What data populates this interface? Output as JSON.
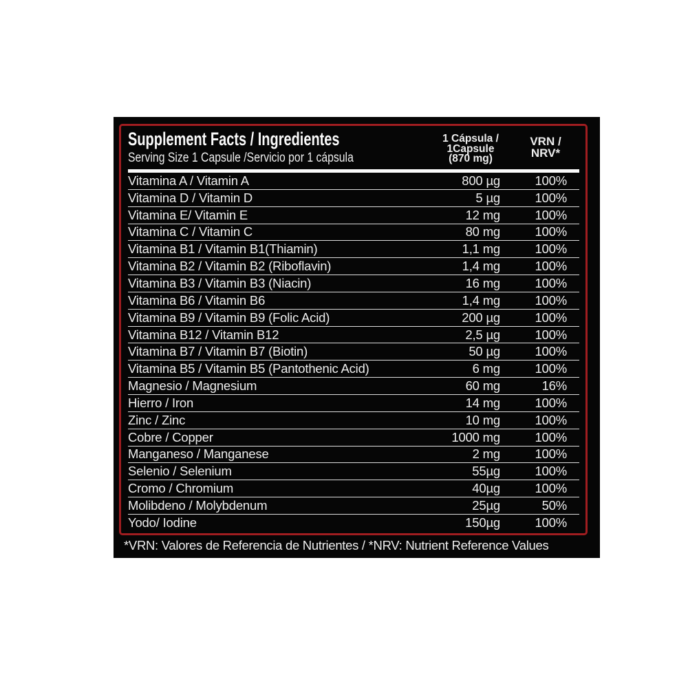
{
  "label": {
    "header": {
      "title": "Supplement Facts / Ingredientes",
      "serving": "Serving Size 1 Capsule /Servicio por 1 cápsula",
      "amount_col": [
        "1 Cápsula /",
        "1Capsule",
        "(870 mg)"
      ],
      "nrv_col": [
        "VRN /",
        "NRV*"
      ]
    },
    "rows": [
      {
        "name": "Vitamina A / Vitamin A",
        "amount": "800 µg",
        "nrv": "100%"
      },
      {
        "name": "Vitamina D / Vitamin D",
        "amount": "5 µg",
        "nrv": "100%"
      },
      {
        "name": "Vitamina E/ Vitamin E",
        "amount": "12 mg",
        "nrv": "100%"
      },
      {
        "name": "Vitamina C / Vitamin C",
        "amount": "80 mg",
        "nrv": "100%"
      },
      {
        "name": "Vitamina B1 / Vitamin B1(Thiamin)",
        "amount": "1,1 mg",
        "nrv": "100%"
      },
      {
        "name": "Vitamina B2 / Vitamin B2 (Riboflavin)",
        "amount": "1,4 mg",
        "nrv": "100%"
      },
      {
        "name": "Vitamina B3 / Vitamin B3 (Niacin)",
        "amount": "16 mg",
        "nrv": "100%"
      },
      {
        "name": "Vitamina B6 / Vitamin B6",
        "amount": "1,4 mg",
        "nrv": "100%"
      },
      {
        "name": "Vitamina B9 / Vitamin B9 (Folic Acid)",
        "amount": "200 µg",
        "nrv": "100%"
      },
      {
        "name": "Vitamina B12 / Vitamin B12",
        "amount": "2,5 µg",
        "nrv": "100%"
      },
      {
        "name": "Vitamina B7 / Vitamin B7 (Biotin)",
        "amount": "50 µg",
        "nrv": "100%"
      },
      {
        "name": "Vitamina B5 / Vitamin B5 (Pantothenic Acid)",
        "amount": "6 mg",
        "nrv": "100%"
      },
      {
        "name": "Magnesio / Magnesium",
        "amount": "60 mg",
        "nrv": "16%"
      },
      {
        "name": "Hierro / Iron",
        "amount": "14 mg",
        "nrv": "100%"
      },
      {
        "name": "Zinc / Zinc",
        "amount": "10 mg",
        "nrv": "100%"
      },
      {
        "name": "Cobre / Copper",
        "amount": "1000 mg",
        "nrv": "100%"
      },
      {
        "name": "Manganeso / Manganese",
        "amount": "2 mg",
        "nrv": "100%"
      },
      {
        "name": "Selenio / Selenium",
        "amount": "55µg",
        "nrv": "100%"
      },
      {
        "name": "Cromo / Chromium",
        "amount": "40µg",
        "nrv": "100%"
      },
      {
        "name": "Molibdeno / Molybdenum",
        "amount": "25µg",
        "nrv": "50%"
      },
      {
        "name": "Yodo/ Iodine",
        "amount": "150µg",
        "nrv": "100%"
      }
    ],
    "footnote": "*VRN: Valores de Referencia de Nutrientes / *NRV: Nutrient Reference Values",
    "colors": {
      "border_red": "#a01d20",
      "panel_black": "#060606",
      "text_white": "#ededed",
      "separator": "#dedede",
      "page_background": "#ffffff"
    }
  }
}
